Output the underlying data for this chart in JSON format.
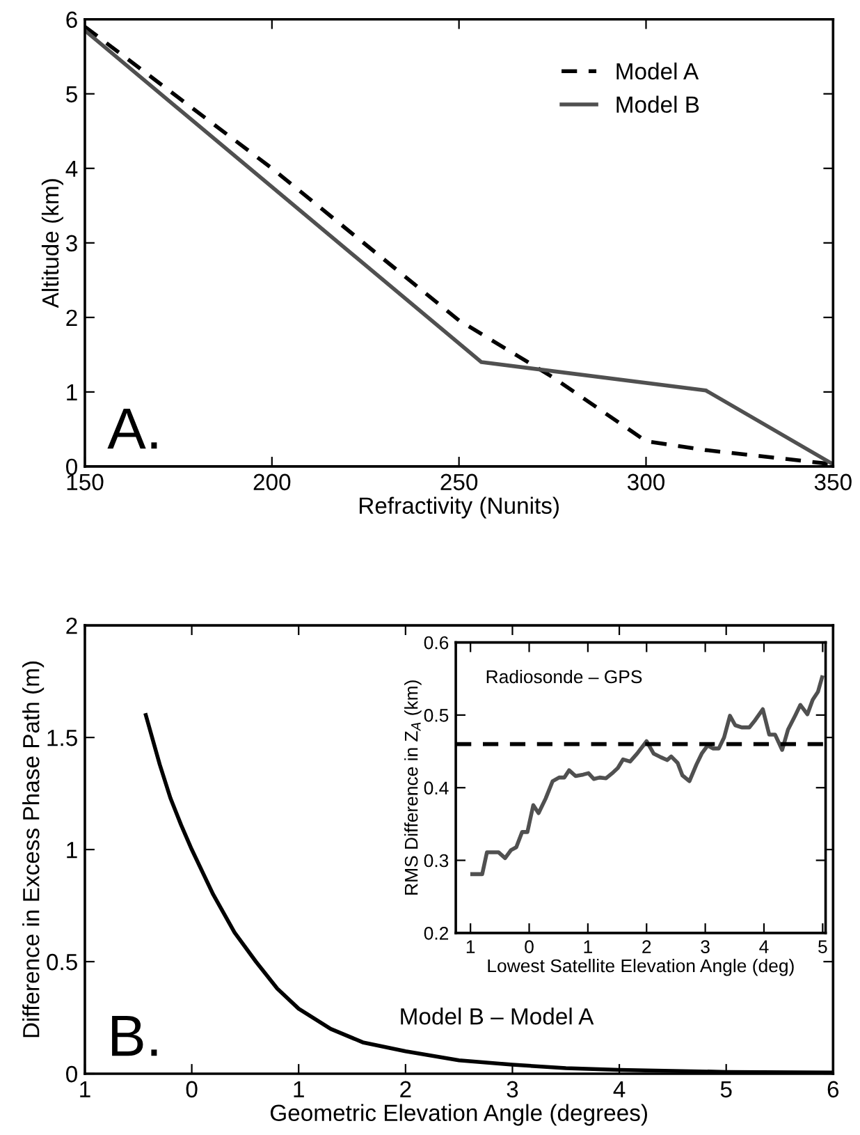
{
  "chart_data": [
    {
      "type": "line",
      "xlabel": "Refractivity (Nunits)",
      "ylabel": "Altitude (km)",
      "xlim": [
        150,
        350
      ],
      "ylim": [
        0,
        6
      ],
      "xticks": [
        150,
        200,
        250,
        300,
        350
      ],
      "yticks": [
        0,
        1,
        2,
        3,
        4,
        5,
        6
      ],
      "legend": "top right",
      "grid": false,
      "annotations": [
        "A."
      ],
      "series": [
        {
          "name": "Model A",
          "color": "#000000",
          "line_style": "dashed",
          "x": [
            150,
            200,
            250,
            275,
            300,
            316,
            350
          ],
          "values": [
            5.9,
            4.0,
            1.96,
            1.2,
            0.34,
            0.22,
            0.03
          ]
        },
        {
          "name": "Model B",
          "color": "#505050",
          "line_style": "solid",
          "x": [
            150,
            256,
            316,
            350
          ],
          "values": [
            5.85,
            1.4,
            1.02,
            0.03
          ]
        }
      ]
    },
    {
      "type": "line",
      "xlabel": "Geometric Elevation Angle (degrees)",
      "ylabel": "Difference in Excess Phase Path (m)",
      "xlim": [
        -1,
        6
      ],
      "ylim": [
        0,
        2
      ],
      "xticks": [
        {
          "value": -1,
          "label": "1"
        },
        0,
        1,
        2,
        3,
        4,
        5,
        6
      ],
      "yticks": [
        0,
        0.5,
        1,
        1.5,
        2
      ],
      "grid": false,
      "annotations": [
        "B.",
        "Model B – Model A"
      ],
      "series": [
        {
          "color": "#000000",
          "line_style": "solid",
          "x": [
            -0.43,
            -0.3,
            -0.2,
            -0.1,
            0,
            0.2,
            0.4,
            0.6,
            0.8,
            1.0,
            1.3,
            1.6,
            2.0,
            2.5,
            3,
            3.5,
            4,
            5,
            6
          ],
          "values": [
            1.6,
            1.38,
            1.23,
            1.11,
            1.0,
            0.8,
            0.63,
            0.5,
            0.38,
            0.29,
            0.2,
            0.14,
            0.1,
            0.06,
            0.04,
            0.025,
            0.017,
            0.008,
            0.005
          ]
        }
      ]
    },
    {
      "type": "line",
      "xlabel": "Lowest Satellite Elevation Angle (deg)",
      "ylabel": "RMS Difference in Z$_{A}$ (km)",
      "xlim": [
        -1.25,
        5.05
      ],
      "ylim": [
        0.2,
        0.6
      ],
      "xticks": [
        {
          "value": -1,
          "label": "1"
        },
        0,
        1,
        2,
        3,
        4,
        5
      ],
      "yticks": [
        0.2,
        0.3,
        0.4,
        0.5,
        0.6
      ],
      "grid": false,
      "annotations": [
        "Radiosonde – GPS"
      ],
      "ref_lines": [
        {
          "axis": "y",
          "value": 0.46,
          "color": "#000000",
          "line_style": "dashed"
        }
      ],
      "series": [
        {
          "color": "#505050",
          "line_style": "solid",
          "x": [
            -0.97,
            -0.8,
            -0.72,
            -0.52,
            -0.41,
            -0.31,
            -0.22,
            -0.12,
            -0.03,
            0.07,
            0.16,
            0.28,
            0.4,
            0.51,
            0.6,
            0.68,
            0.79,
            0.92,
            1.01,
            1.1,
            1.2,
            1.31,
            1.43,
            1.51,
            1.6,
            1.72,
            1.84,
            2.0,
            2.12,
            2.24,
            2.35,
            2.42,
            2.53,
            2.61,
            2.73,
            2.85,
            2.94,
            3.04,
            3.13,
            3.23,
            3.32,
            3.42,
            3.51,
            3.62,
            3.75,
            3.85,
            3.98,
            4.09,
            4.19,
            4.31,
            4.41,
            4.53,
            4.62,
            4.74,
            4.83,
            4.92,
            4.99
          ],
          "values": [
            0.281,
            0.281,
            0.311,
            0.311,
            0.303,
            0.314,
            0.318,
            0.339,
            0.339,
            0.376,
            0.365,
            0.385,
            0.409,
            0.414,
            0.414,
            0.424,
            0.416,
            0.418,
            0.42,
            0.412,
            0.414,
            0.413,
            0.421,
            0.427,
            0.439,
            0.436,
            0.447,
            0.464,
            0.447,
            0.442,
            0.438,
            0.443,
            0.434,
            0.417,
            0.409,
            0.432,
            0.447,
            0.458,
            0.454,
            0.454,
            0.469,
            0.499,
            0.486,
            0.483,
            0.483,
            0.493,
            0.508,
            0.473,
            0.473,
            0.452,
            0.48,
            0.499,
            0.514,
            0.501,
            0.521,
            0.532,
            0.552
          ]
        }
      ]
    }
  ]
}
